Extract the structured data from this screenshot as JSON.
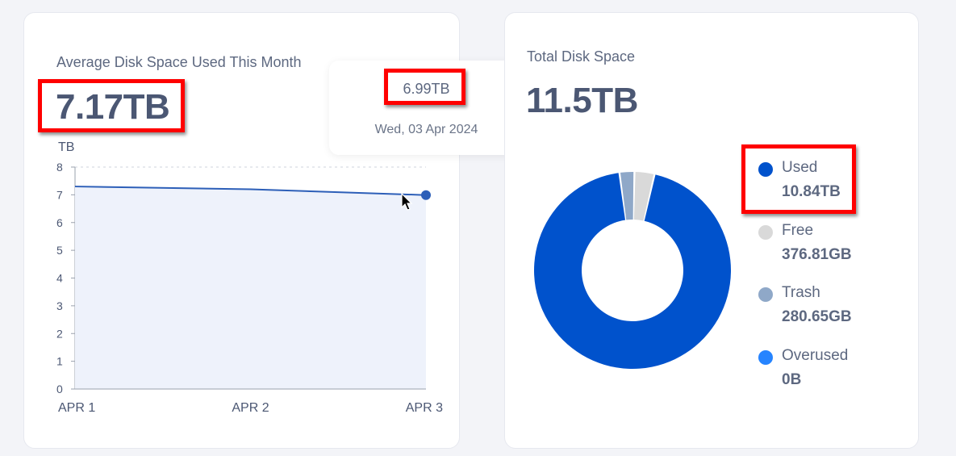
{
  "avg_card": {
    "title": "Average Disk Space Used This Month",
    "value": "7.17TB"
  },
  "tooltip": {
    "value": "6.99TB",
    "date": "Wed, 03 Apr 2024"
  },
  "total_card": {
    "title": "Total Disk Space",
    "value": "11.5TB"
  },
  "legend": [
    {
      "label": "Used",
      "value": "10.84TB",
      "color": "#0052cc"
    },
    {
      "label": "Free",
      "value": "376.81GB",
      "color": "#d9d9d9"
    },
    {
      "label": "Trash",
      "value": "280.65GB",
      "color": "#8fa8c8"
    },
    {
      "label": "Overused",
      "value": "0B",
      "color": "#2684ff"
    }
  ],
  "chart_data": [
    {
      "type": "area",
      "ylabel": "TB",
      "categories": [
        "APR 1",
        "APR 2",
        "APR 3"
      ],
      "y_ticks": [
        "0",
        "1",
        "2",
        "3",
        "4",
        "5",
        "6",
        "7",
        "8"
      ],
      "ylim": [
        0,
        8
      ],
      "series": [
        {
          "values": [
            7.3,
            7.2,
            6.99
          ],
          "color": "#2d5fb8",
          "fill": "#eef2fb"
        }
      ],
      "grid": "dashed line at 8"
    },
    {
      "type": "pie",
      "variant": "donut",
      "slices": [
        {
          "label": "Used",
          "value": 10.84,
          "color": "#0052cc"
        },
        {
          "label": "Free",
          "value": 0.37681,
          "color": "#d9d9d9"
        },
        {
          "label": "Trash",
          "value": 0.28065,
          "color": "#8fa8c8"
        },
        {
          "label": "Overused",
          "value": 0,
          "color": "#2684ff"
        }
      ]
    }
  ]
}
